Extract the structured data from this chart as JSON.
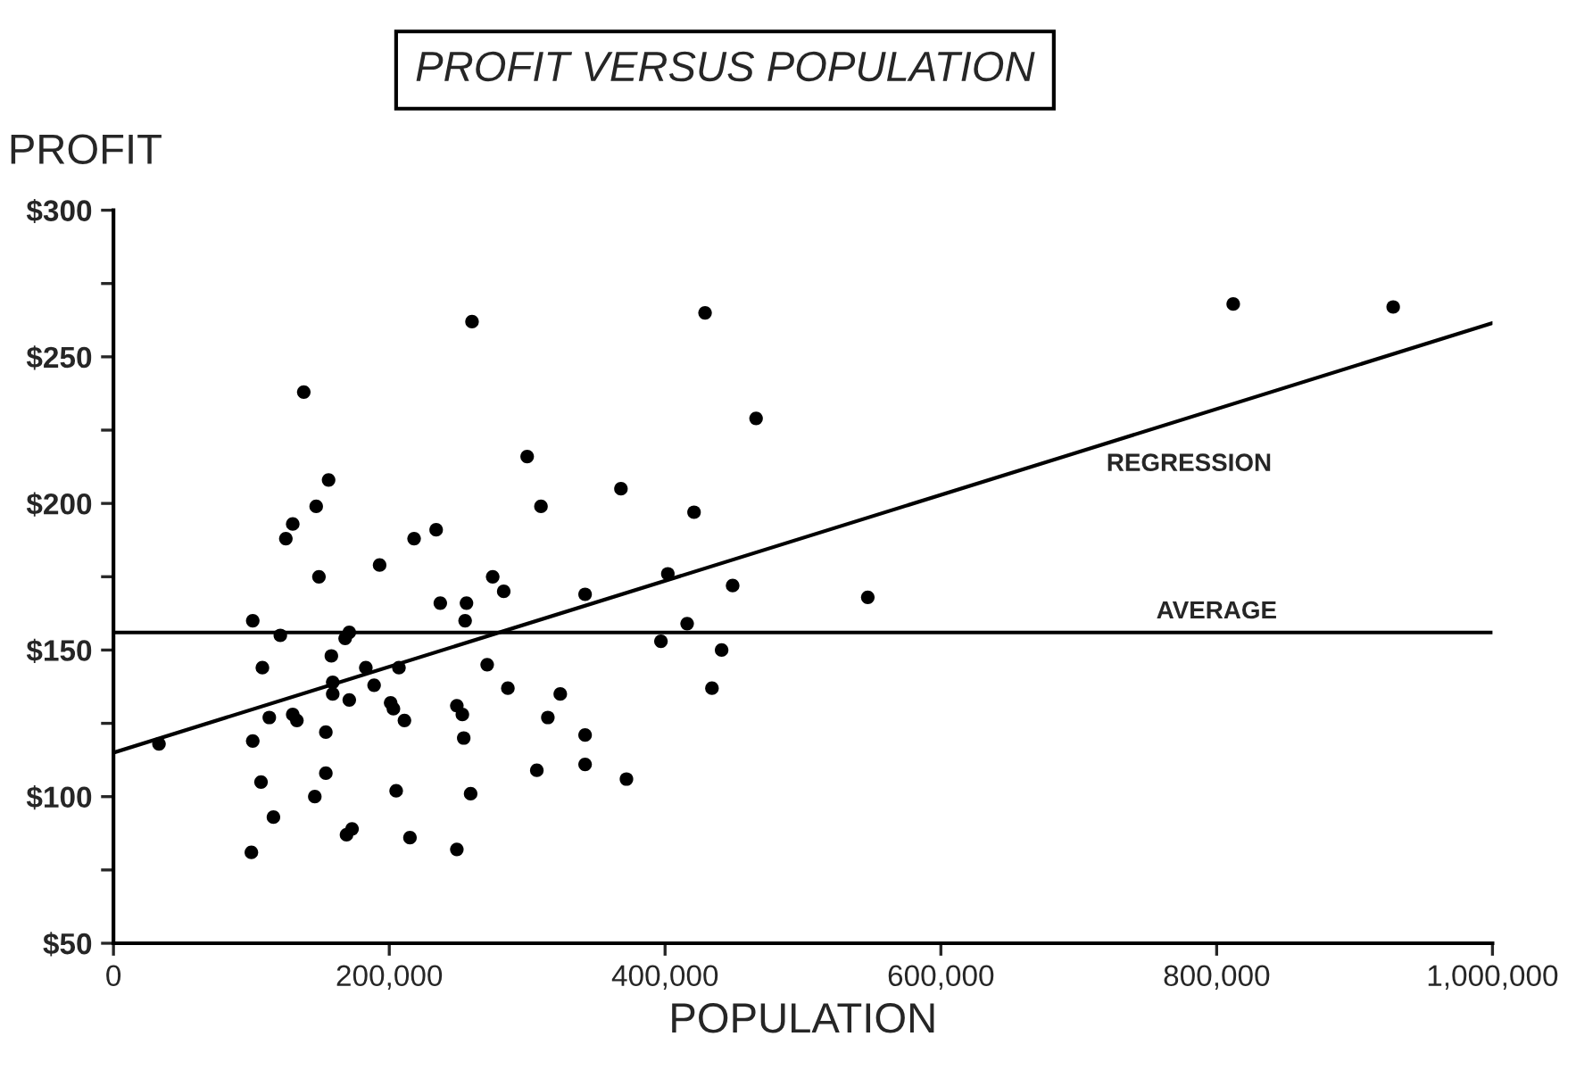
{
  "chart_data": {
    "type": "scatter",
    "title": "PROFIT VERSUS POPULATION",
    "xlabel": "POPULATION",
    "ylabel": "PROFIT",
    "xlim": [
      0,
      1000000
    ],
    "ylim": [
      50,
      300
    ],
    "xticks": [
      {
        "value": 0,
        "label": "0"
      },
      {
        "value": 200000,
        "label": "200,000"
      },
      {
        "value": 400000,
        "label": "400,000"
      },
      {
        "value": 600000,
        "label": "600,000"
      },
      {
        "value": 800000,
        "label": "800,000"
      },
      {
        "value": 1000000,
        "label": "1,000,000"
      }
    ],
    "yticks": [
      {
        "value": 50,
        "label": "$50"
      },
      {
        "value": 75,
        "label": null
      },
      {
        "value": 100,
        "label": "$100"
      },
      {
        "value": 125,
        "label": null
      },
      {
        "value": 150,
        "label": "$150"
      },
      {
        "value": 175,
        "label": null
      },
      {
        "value": 200,
        "label": "$200"
      },
      {
        "value": 225,
        "label": null
      },
      {
        "value": 250,
        "label": "$250"
      },
      {
        "value": 275,
        "label": null
      },
      {
        "value": 300,
        "label": "$300"
      }
    ],
    "grid": false,
    "legend": false,
    "marker": "circle",
    "series": [
      {
        "color": "#000000",
        "x": [
          33000,
          138000,
          260000,
          156000,
          147000,
          130000,
          125000,
          149000,
          193000,
          218000,
          234000,
          300000,
          310000,
          101000,
          121000,
          171000,
          168000,
          108000,
          158000,
          183000,
          207000,
          159000,
          159000,
          189000,
          171000,
          237000,
          256000,
          255000,
          275000,
          283000,
          271000,
          286000,
          113000,
          130000,
          133000,
          201000,
          203000,
          211000,
          249000,
          253000,
          254000,
          154000,
          101000,
          107000,
          146000,
          154000,
          205000,
          259000,
          116000,
          307000,
          173000,
          169000,
          215000,
          100000,
          249000,
          429000,
          466000,
          368000,
          421000,
          342000,
          402000,
          449000,
          547000,
          416000,
          397000,
          441000,
          434000,
          324000,
          315000,
          342000,
          342000,
          372000,
          812000,
          928000
        ],
        "values": [
          118,
          238,
          262,
          208,
          199,
          193,
          188,
          175,
          179,
          188,
          191,
          216,
          199,
          160,
          155,
          156,
          154,
          144,
          148,
          144,
          144,
          139,
          135,
          138,
          133,
          166,
          166,
          160,
          175,
          170,
          145,
          137,
          127,
          128,
          126,
          132,
          130,
          126,
          131,
          128,
          120,
          122,
          119,
          105,
          100,
          108,
          102,
          101,
          93,
          109,
          89,
          87,
          86,
          81,
          82,
          265,
          229,
          205,
          197,
          169,
          176,
          172,
          168,
          159,
          153,
          150,
          137,
          135,
          127,
          121,
          111,
          106,
          268,
          267
        ]
      },
      {
        "type": "line",
        "name": "REGRESSION",
        "color": "#000000",
        "x": [
          0,
          1000000
        ],
        "values": [
          115,
          261.5
        ],
        "marker": "none"
      }
    ],
    "ref_lines": [
      {
        "axis": "y",
        "value": 156,
        "label": "AVERAGE",
        "color": "#000000"
      }
    ]
  }
}
